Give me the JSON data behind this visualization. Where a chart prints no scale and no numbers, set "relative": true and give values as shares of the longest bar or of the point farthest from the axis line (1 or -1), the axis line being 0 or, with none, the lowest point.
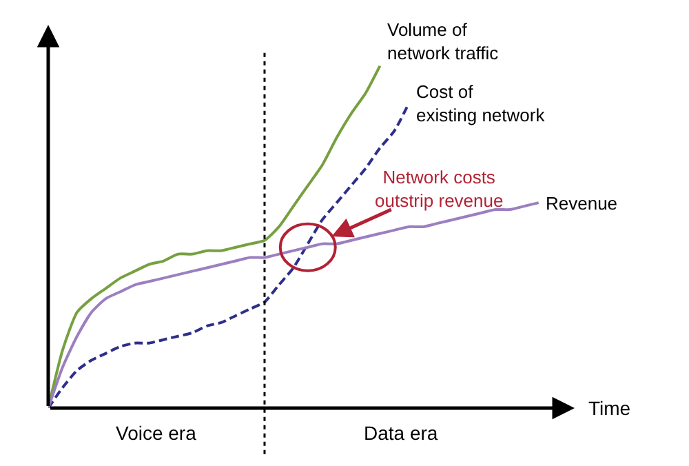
{
  "chart_data": {
    "type": "line",
    "relative": true,
    "xlabel": "Time",
    "legend": false,
    "categories": [
      null,
      null,
      null,
      null,
      null,
      null,
      null,
      null,
      null,
      null,
      null,
      null,
      null,
      null,
      null,
      null,
      null,
      null,
      null,
      null,
      null,
      null,
      null,
      null,
      null,
      null,
      null,
      null,
      null,
      null,
      null,
      null,
      null,
      null,
      null
    ],
    "series": [
      {
        "name": "Volume of\nnetwork traffic",
        "color": "#77a040",
        "line_style": "solid",
        "values": [
          0,
          0.17,
          0.28,
          0.32,
          0.35,
          0.38,
          0.4,
          0.42,
          0.43,
          0.45,
          0.45,
          0.46,
          0.46,
          0.47,
          0.48,
          0.49,
          0.53,
          0.59,
          0.65,
          0.71,
          0.79,
          0.86,
          0.92,
          1,
          null,
          null,
          null,
          null,
          null,
          null,
          null,
          null,
          null,
          null,
          null
        ]
      },
      {
        "name": "Cost of\nexisting network",
        "color": "#2e2e8c",
        "line_style": "dashed",
        "values": [
          0,
          0.06,
          0.11,
          0.14,
          0.16,
          0.18,
          0.19,
          0.19,
          0.2,
          0.21,
          0.22,
          0.24,
          0.25,
          0.27,
          0.29,
          0.31,
          0.36,
          0.41,
          0.48,
          0.55,
          0.6,
          0.65,
          0.7,
          0.76,
          0.81,
          0.89,
          null,
          null,
          null,
          null,
          null,
          null,
          null,
          null,
          null
        ]
      },
      {
        "name": "Revenue",
        "color": "#9b7fc0",
        "line_style": "solid",
        "values": [
          0,
          0.12,
          0.21,
          0.28,
          0.32,
          0.34,
          0.36,
          0.37,
          0.38,
          0.39,
          0.4,
          0.41,
          0.42,
          0.43,
          0.44,
          0.44,
          0.45,
          0.46,
          0.47,
          0.48,
          0.48,
          0.49,
          0.5,
          0.51,
          0.52,
          0.53,
          0.53,
          0.54,
          0.55,
          0.56,
          0.57,
          0.58,
          0.58,
          0.59,
          0.6
        ]
      }
    ],
    "annotations": [
      "Voice era",
      "Data era",
      "Network costs\noutstrip revenue"
    ]
  }
}
